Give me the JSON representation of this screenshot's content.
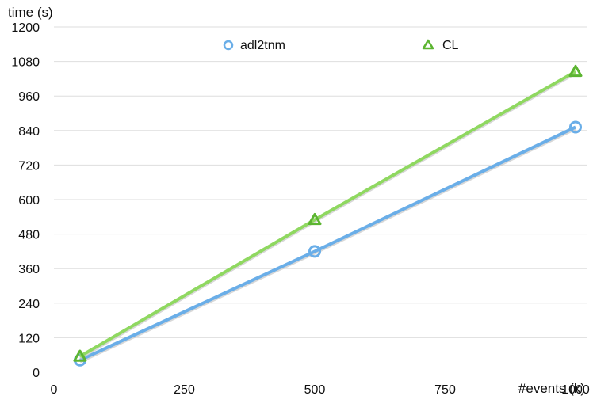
{
  "chart_data": {
    "type": "line",
    "xlabel": "#events (k)",
    "ylabel": "time (s)",
    "xlim": [
      0,
      1000
    ],
    "ylim": [
      0,
      1200
    ],
    "xticks": [
      "0",
      "250",
      "500",
      "750",
      "1000"
    ],
    "yticks": [
      "0",
      "120",
      "240",
      "360",
      "480",
      "600",
      "720",
      "840",
      "960",
      "1080",
      "1200"
    ],
    "grid": "horizontal",
    "legend_position": "top",
    "series": [
      {
        "name": "adl2tnm",
        "marker": "circle",
        "color": "#6aaee8",
        "x": [
          50,
          500,
          1000
        ],
        "y": [
          42,
          420,
          852
        ]
      },
      {
        "name": "CL",
        "marker": "triangle",
        "color": "#8fd860",
        "marker_color": "#5cb531",
        "x": [
          50,
          500,
          1000
        ],
        "y": [
          55,
          530,
          1045
        ]
      }
    ]
  }
}
